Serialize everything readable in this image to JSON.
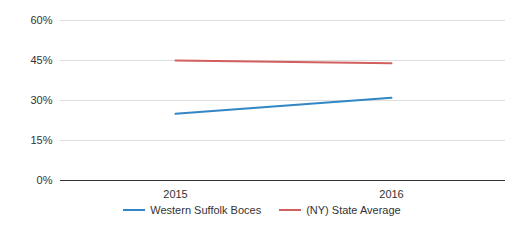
{
  "chart_data": {
    "type": "line",
    "categories": [
      "2015",
      "2016"
    ],
    "series": [
      {
        "name": "Western Suffolk Boces",
        "color": "#3186c3",
        "values": [
          25,
          31
        ]
      },
      {
        "name": "(NY) State Average",
        "color": "#d1605e",
        "values": [
          45,
          44
        ]
      }
    ],
    "ylim": [
      0,
      60
    ],
    "yticks": [
      {
        "value": 0,
        "label": "0%"
      },
      {
        "value": 15,
        "label": "15%"
      },
      {
        "value": 30,
        "label": "30%"
      },
      {
        "value": 45,
        "label": "45%"
      },
      {
        "value": 60,
        "label": "60%"
      }
    ],
    "grid": true,
    "legend": "bottom"
  }
}
